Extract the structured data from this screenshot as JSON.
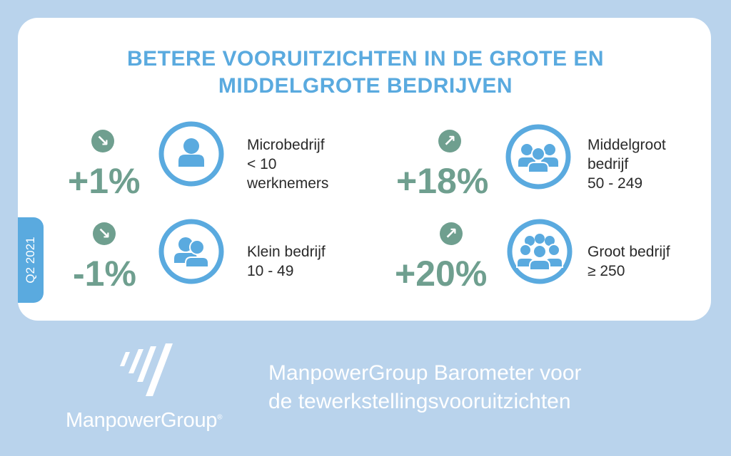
{
  "title": {
    "line1": "BETERE VOORUITZICHTEN IN DE GROTE EN",
    "line2": "MIDDELGROTE BEDRIJVEN"
  },
  "period": "Q2 2021",
  "segments": [
    {
      "id": "micro",
      "change": "+1%",
      "trend": "down",
      "arrow": "↘",
      "icon": "single-person-icon",
      "label_lines": [
        "Microbedrijf",
        "< 10",
        "werknemers"
      ]
    },
    {
      "id": "klein",
      "change": "-1%",
      "trend": "down",
      "arrow": "↘",
      "icon": "two-people-icon",
      "label_lines": [
        "Klein bedrijf",
        "10 - 49"
      ]
    },
    {
      "id": "middelgroot",
      "change": "+18%",
      "trend": "up",
      "arrow": "↗",
      "icon": "group-people-icon",
      "label_lines": [
        "Middelgroot",
        "bedrijf",
        "50 - 249"
      ]
    },
    {
      "id": "groot",
      "change": "+20%",
      "trend": "up",
      "arrow": "↗",
      "icon": "large-group-people-icon",
      "label_lines": [
        "Groot bedrijf",
        "≥ 250"
      ]
    }
  ],
  "footer": {
    "brand": "ManpowerGroup",
    "tagline_line1": "ManpowerGroup Barometer voor",
    "tagline_line2": "de tewerkstellingsvooruitzichten"
  },
  "colors": {
    "background": "#b9d3ec",
    "accent_blue": "#5aaadf",
    "green": "#6f9f8f",
    "text": "#2a2a2a"
  }
}
